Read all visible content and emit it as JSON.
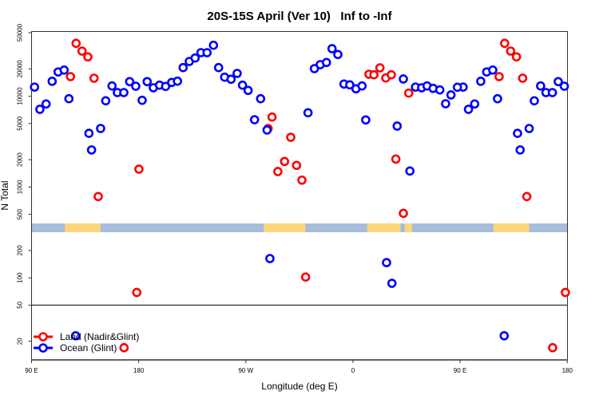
{
  "chart_data": {
    "type": "scatter",
    "title": "20S-15S April (Ver 10)   Inf to -Inf",
    "xlabel": "Longitude (deg E)",
    "ylabel": "N Total",
    "x_unit": "degrees longitude (east positive)",
    "x_axis_range_labels": [
      "90 E",
      "180"
    ],
    "x_wrap_note": "axis runs 90 E eastward through 180, 90 W, 0 to 180; data from 90 E to 180 repeats at the right end",
    "x_ticks": [
      {
        "lon": 90,
        "label": "90 E"
      },
      {
        "lon": 180,
        "label": "180"
      },
      {
        "lon": -90,
        "label": "90 W"
      },
      {
        "lon": 0,
        "label": "0"
      },
      {
        "lon": 90,
        "label": "90 E",
        "repeat": true
      },
      {
        "lon": 180,
        "label": "180",
        "repeat": true
      }
    ],
    "y_scale": "log",
    "ylim": [
      12.6,
      51000
    ],
    "y_ticks": [
      50000,
      20000,
      10000,
      5000,
      2000,
      1000,
      500,
      200,
      100,
      50,
      20
    ],
    "y_reference_line": 50,
    "grid": false,
    "legend_position": "bottom-left",
    "colors": {
      "land": "#ff0000",
      "ocean": "#0000ff",
      "map_land": "#fcd77a",
      "map_ocean": "#a6bddb"
    },
    "land_mask_segments": [
      [
        118,
        148
      ],
      [
        -75,
        -40
      ],
      [
        12,
        40
      ],
      [
        43.5,
        49.5
      ]
    ],
    "series": [
      {
        "name": "Land (Nadir&Glint)",
        "color": "#ff0000",
        "points": [
          [
            127.4,
            38200
          ],
          [
            132.4,
            31400
          ],
          [
            137.3,
            27100
          ],
          [
            122.7,
            16430
          ],
          [
            142.5,
            15780
          ],
          [
            146.0,
            785
          ],
          [
            -179.8,
            1572
          ],
          [
            178.4,
            69
          ],
          [
            167.7,
            17
          ],
          [
            -68.0,
            5890
          ],
          [
            -71.3,
            4410
          ],
          [
            -52.3,
            3530
          ],
          [
            -57.5,
            1910
          ],
          [
            -63.1,
            1480
          ],
          [
            -47.4,
            1730
          ],
          [
            -42.9,
            1190
          ],
          [
            -39.8,
            102
          ],
          [
            13.4,
            17460
          ],
          [
            17.6,
            17210
          ],
          [
            22.6,
            20530
          ],
          [
            27.5,
            15880
          ],
          [
            32.2,
            17210
          ],
          [
            36.0,
            2030
          ],
          [
            42.3,
            513
          ],
          [
            46.8,
            10810
          ]
        ]
      },
      {
        "name": "Ocean (Glint)",
        "color": "#0000ff",
        "points": [
          [
            92.5,
            12600
          ],
          [
            97.0,
            7170
          ],
          [
            102.2,
            8210
          ],
          [
            107.3,
            14600
          ],
          [
            112.3,
            18500
          ],
          [
            117.4,
            19400
          ],
          [
            121.4,
            9380
          ],
          [
            138.2,
            3900
          ],
          [
            140.4,
            2560
          ],
          [
            148.0,
            4410
          ],
          [
            152.3,
            8900
          ],
          [
            157.6,
            12970
          ],
          [
            162.1,
            10960
          ],
          [
            167.5,
            10960
          ],
          [
            172.4,
            14470
          ],
          [
            177.5,
            12890
          ],
          [
            127.0,
            23
          ],
          [
            -177.1,
            9010
          ],
          [
            -172.9,
            14470
          ],
          [
            -167.7,
            12380
          ],
          [
            -162.5,
            13230
          ],
          [
            -157.4,
            12810
          ],
          [
            -152.3,
            14180
          ],
          [
            -147.4,
            14640
          ],
          [
            -142.7,
            20650
          ],
          [
            -137.5,
            24130
          ],
          [
            -132.6,
            26330
          ],
          [
            -127.7,
            30150
          ],
          [
            -122.6,
            30150
          ],
          [
            -117.2,
            36390
          ],
          [
            -112.9,
            20650
          ],
          [
            -107.8,
            16200
          ],
          [
            -102.4,
            15370
          ],
          [
            -97.3,
            17820
          ],
          [
            -92.8,
            13230
          ],
          [
            -88.1,
            11580
          ],
          [
            -82.7,
            5510
          ],
          [
            -77.6,
            9380
          ],
          [
            -72.2,
            4240
          ],
          [
            -69.8,
            163
          ],
          [
            -37.8,
            6570
          ],
          [
            -32.4,
            20120
          ],
          [
            -27.5,
            22260
          ],
          [
            -22.3,
            23510
          ],
          [
            -17.6,
            33370
          ],
          [
            -12.7,
            28780
          ],
          [
            -7.6,
            13610
          ],
          [
            -2.7,
            13340
          ],
          [
            2.5,
            12060
          ],
          [
            7.6,
            12970
          ],
          [
            10.7,
            5480
          ],
          [
            28.2,
            147
          ],
          [
            32.7,
            87
          ],
          [
            37.1,
            4690
          ],
          [
            42.3,
            15470
          ],
          [
            47.8,
            1500
          ],
          [
            52.5,
            12600
          ],
          [
            57.7,
            12380
          ],
          [
            62.2,
            12970
          ],
          [
            67.3,
            12200
          ],
          [
            72.9,
            11720
          ],
          [
            77.8,
            8260
          ],
          [
            82.3,
            10320
          ],
          [
            87.7,
            12550
          ]
        ]
      }
    ]
  }
}
